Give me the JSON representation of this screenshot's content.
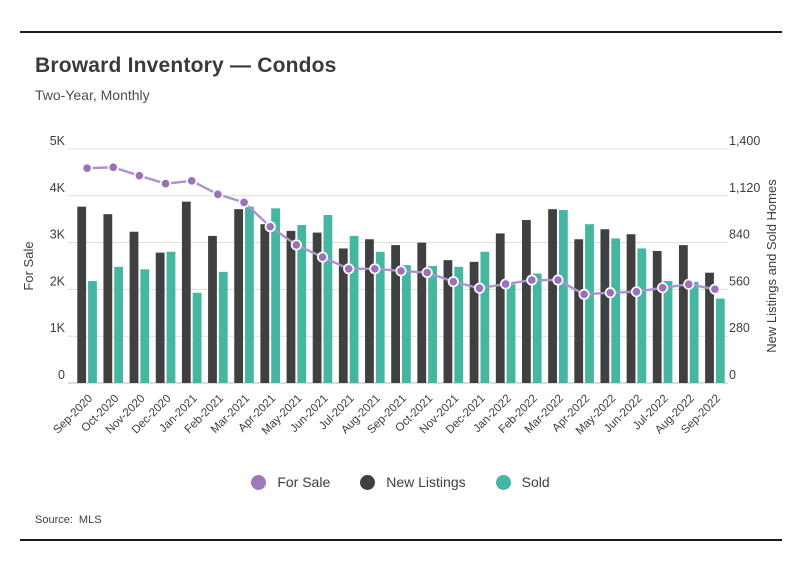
{
  "header": {
    "title": "Broward Inventory — Condos",
    "subtitle": "Two-Year, Monthly"
  },
  "footer": {
    "source_label": "Source:",
    "source_value": "MLS"
  },
  "legend": [
    {
      "label": "For Sale",
      "color": "#9e79bd"
    },
    {
      "label": "New Listings",
      "color": "#404040"
    },
    {
      "label": "Sold",
      "color": "#45b6a2"
    }
  ],
  "colors": {
    "bar_new_listings": "#404040",
    "bar_sold": "#45b6a2",
    "line_for_sale": "#ab93d0",
    "marker_fill": "#9b72ba",
    "marker_stroke": "#ffffff",
    "gridline": "#dcdcdc",
    "baseline": "#b8b8b8",
    "text": "#3d3d3d"
  },
  "chart_data": {
    "type": "bar",
    "subtype": "grouped bars with overlaid line",
    "title": "Broward Inventory — Condos",
    "subtitle": "Two-Year, Monthly",
    "grid": true,
    "legend_position": "bottom",
    "categories": [
      "Sep-2020",
      "Oct-2020",
      "Nov-2020",
      "Dec-2020",
      "Jan-2021",
      "Feb-2021",
      "Mar-2021",
      "Apr-2021",
      "May-2021",
      "Jun-2021",
      "Jul-2021",
      "Aug-2021",
      "Sep-2021",
      "Oct-2021",
      "Nov-2021",
      "Dec-2021",
      "Jan-2022",
      "Feb-2022",
      "Mar-2022",
      "Apr-2022",
      "May-2022",
      "Jun-2022",
      "Jul-2022",
      "Aug-2022",
      "Sep-2022"
    ],
    "series": [
      {
        "name": "For Sale",
        "type": "line",
        "axis": "left",
        "values": [
          4590,
          4610,
          4430,
          4260,
          4320,
          4030,
          3860,
          3340,
          2950,
          2690,
          2440,
          2440,
          2395,
          2360,
          2165,
          2025,
          2115,
          2200,
          2200,
          1895,
          1930,
          1950,
          2035,
          2110,
          2005
        ]
      },
      {
        "name": "New Listings",
        "type": "bar",
        "axis": "right",
        "values": [
          1055,
          1010,
          905,
          780,
          1085,
          880,
          1040,
          950,
          910,
          900,
          805,
          860,
          825,
          840,
          735,
          725,
          895,
          975,
          1040,
          860,
          920,
          890,
          790,
          825,
          660
        ]
      },
      {
        "name": "Sold",
        "type": "bar",
        "axis": "right",
        "values": [
          610,
          695,
          680,
          785,
          540,
          665,
          1055,
          1045,
          945,
          1005,
          880,
          785,
          705,
          700,
          695,
          785,
          590,
          655,
          1035,
          950,
          865,
          805,
          610,
          605,
          505
        ]
      }
    ],
    "left_axis": {
      "title": "For Sale",
      "range": [
        0,
        5000
      ],
      "ticks": [
        "0",
        "1K",
        "2K",
        "3K",
        "4K",
        "5K"
      ]
    },
    "right_axis": {
      "title": "New Listings and Sold Homes",
      "range": [
        0,
        1400
      ],
      "ticks": [
        "0",
        "280",
        "560",
        "840",
        "1,120",
        "1,400"
      ]
    }
  }
}
